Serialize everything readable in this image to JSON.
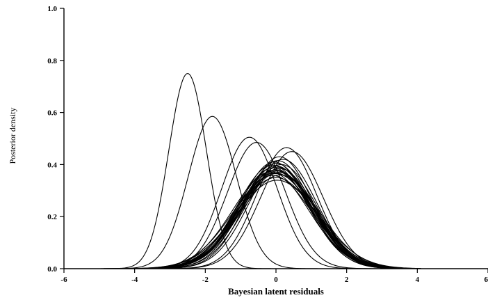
{
  "chart_data": {
    "type": "line",
    "xlabel": "Bayesian latent residuals",
    "ylabel": "Posterior density",
    "xlim": [
      -6,
      6
    ],
    "ylim": [
      0,
      1
    ],
    "xticks": [
      -6,
      -4,
      -2,
      0,
      2,
      4,
      6
    ],
    "yticks": [
      0,
      0.2,
      0.4,
      0.6,
      0.8,
      1
    ],
    "xtick_labels": [
      "-6",
      "-4",
      "-2",
      "0",
      "2",
      "4",
      "6"
    ],
    "ytick_labels": [
      "0.0",
      "0.2",
      "0.4",
      "0.6",
      "0.8",
      "1.0"
    ],
    "grid": false,
    "series_shape": "normal density",
    "curve_params": [
      {
        "mean": -2.5,
        "peak": 0.75
      },
      {
        "mean": -1.8,
        "peak": 0.585
      },
      {
        "mean": -0.75,
        "peak": 0.505
      },
      {
        "mean": -0.55,
        "peak": 0.485
      },
      {
        "mean": 0.3,
        "peak": 0.465
      },
      {
        "mean": 0.45,
        "peak": 0.45
      },
      {
        "mean": 0.1,
        "peak": 0.43
      },
      {
        "mean": 0.2,
        "peak": 0.42
      },
      {
        "mean": 0.05,
        "peak": 0.415
      },
      {
        "mean": -0.05,
        "peak": 0.41
      },
      {
        "mean": 0.0,
        "peak": 0.405
      },
      {
        "mean": 0.15,
        "peak": 0.4
      },
      {
        "mean": -0.1,
        "peak": 0.398
      },
      {
        "mean": 0.0,
        "peak": 0.395
      },
      {
        "mean": 0.05,
        "peak": 0.39
      },
      {
        "mean": -0.08,
        "peak": 0.388
      },
      {
        "mean": 0.1,
        "peak": 0.385
      },
      {
        "mean": 0.0,
        "peak": 0.38
      },
      {
        "mean": -0.05,
        "peak": 0.378
      },
      {
        "mean": 0.05,
        "peak": 0.375
      },
      {
        "mean": -0.15,
        "peak": 0.372
      },
      {
        "mean": 0.08,
        "peak": 0.37
      },
      {
        "mean": -0.02,
        "peak": 0.368
      },
      {
        "mean": 0.0,
        "peak": 0.365
      },
      {
        "mean": 0.12,
        "peak": 0.36
      },
      {
        "mean": -0.1,
        "peak": 0.358
      },
      {
        "mean": 0.0,
        "peak": 0.35
      },
      {
        "mean": 0.03,
        "peak": 0.34
      }
    ]
  }
}
